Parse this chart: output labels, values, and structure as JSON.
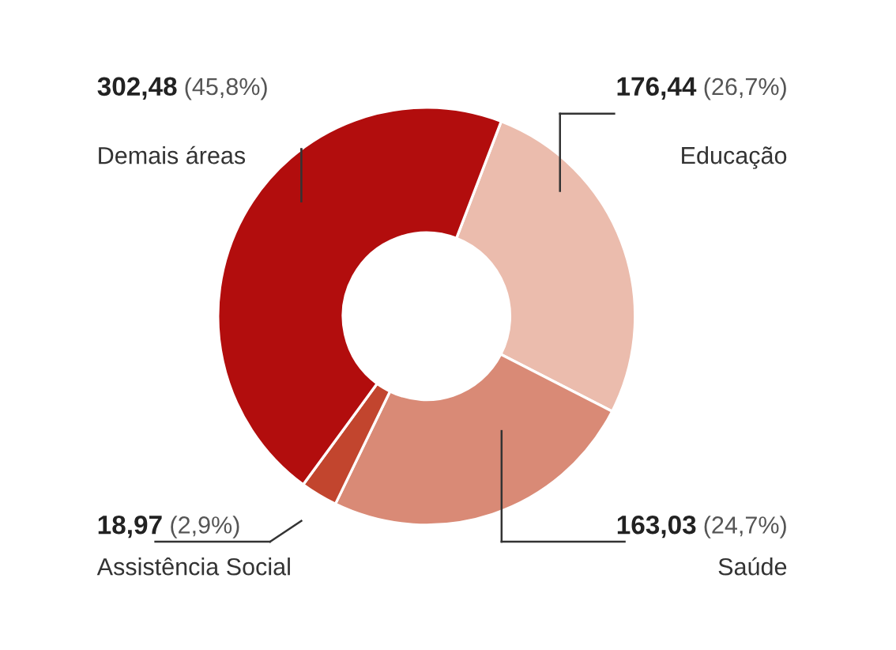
{
  "chart_data": {
    "type": "donut",
    "categories": [
      "Educação",
      "Saúde",
      "Assistência Social",
      "Demais áreas"
    ],
    "values": [
      176.44,
      163.03,
      18.97,
      302.48
    ],
    "colors": [
      "#ebbcad",
      "#d98a76",
      "#c2452e",
      "#b20d0d"
    ],
    "value_labels": [
      "176,44 (26,7%)",
      "163,03 (24,7%)",
      "18,97 (2,9%)",
      "302,48 (45,8%)"
    ],
    "legend": false
  }
}
